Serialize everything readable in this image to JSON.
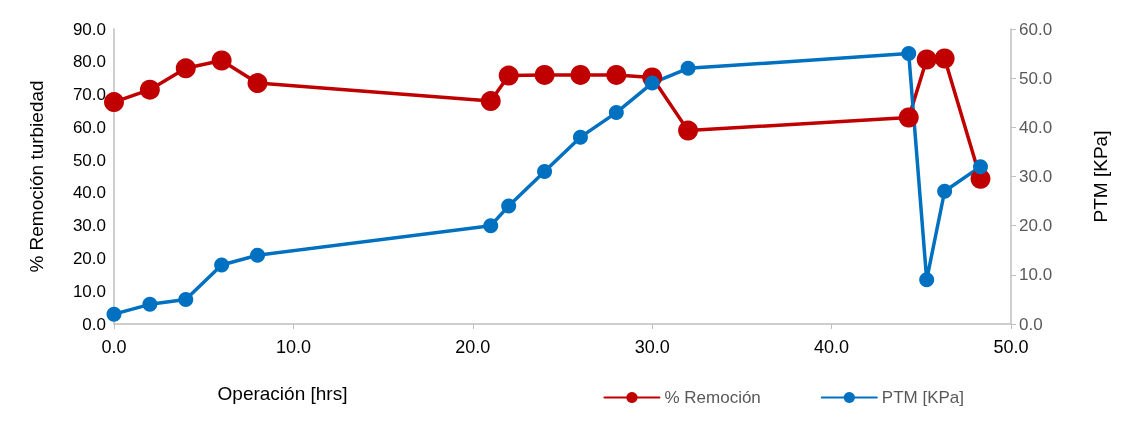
{
  "chart_data": {
    "type": "line",
    "xlabel": "Operación [hrs]",
    "ylabel": "% Remoción turbiedad",
    "y2label": "PTM [KPa]",
    "xlim": [
      0,
      50
    ],
    "xticks": [
      {
        "value": 0,
        "label": "0.0"
      },
      {
        "value": 10,
        "label": "10.0"
      },
      {
        "value": 20,
        "label": "20.0"
      },
      {
        "value": 30,
        "label": "30.0"
      },
      {
        "value": 40,
        "label": "40.0"
      },
      {
        "value": 50,
        "label": "50.0"
      }
    ],
    "ylim": [
      0,
      90
    ],
    "yticks": [
      {
        "value": 0,
        "label": "0.0"
      },
      {
        "value": 10,
        "label": "10.0"
      },
      {
        "value": 20,
        "label": "20.0"
      },
      {
        "value": 30,
        "label": "30.0"
      },
      {
        "value": 40,
        "label": "40.0"
      },
      {
        "value": 50,
        "label": "50.0"
      },
      {
        "value": 60,
        "label": "60.0"
      },
      {
        "value": 70,
        "label": "70.0"
      },
      {
        "value": 80,
        "label": "80.0"
      },
      {
        "value": 90,
        "label": "90.0"
      }
    ],
    "y2lim": [
      0,
      60
    ],
    "y2ticks": [
      {
        "value": 0,
        "label": "0.0"
      },
      {
        "value": 10,
        "label": "10.0"
      },
      {
        "value": 20,
        "label": "20.0"
      },
      {
        "value": 30,
        "label": "30.0"
      },
      {
        "value": 40,
        "label": "40.0"
      },
      {
        "value": 50,
        "label": "50.0"
      },
      {
        "value": 60,
        "label": "60.0"
      }
    ],
    "x": [
      0,
      2,
      4,
      6,
      8,
      21,
      22,
      24,
      26,
      28,
      30,
      32,
      44.3,
      45.3,
      46.3,
      48.3
    ],
    "series": [
      {
        "name": "% Remoción",
        "color": "#c00000",
        "values": [
          67.7,
          71.5,
          78,
          80.4,
          73.5,
          68,
          75.8,
          76,
          76,
          76,
          75.2,
          59,
          63,
          80.7,
          81,
          44.3
        ]
      },
      {
        "name": "PTM [KPa]",
        "color": "#0070c0",
        "axis": "y2",
        "values": [
          2,
          4,
          5,
          12,
          14,
          20,
          24,
          31,
          38,
          43,
          49,
          52,
          55,
          9,
          27,
          32
        ]
      }
    ],
    "grid": false,
    "legend": "bottom right",
    "marker": "circle",
    "line_style": "solid"
  }
}
